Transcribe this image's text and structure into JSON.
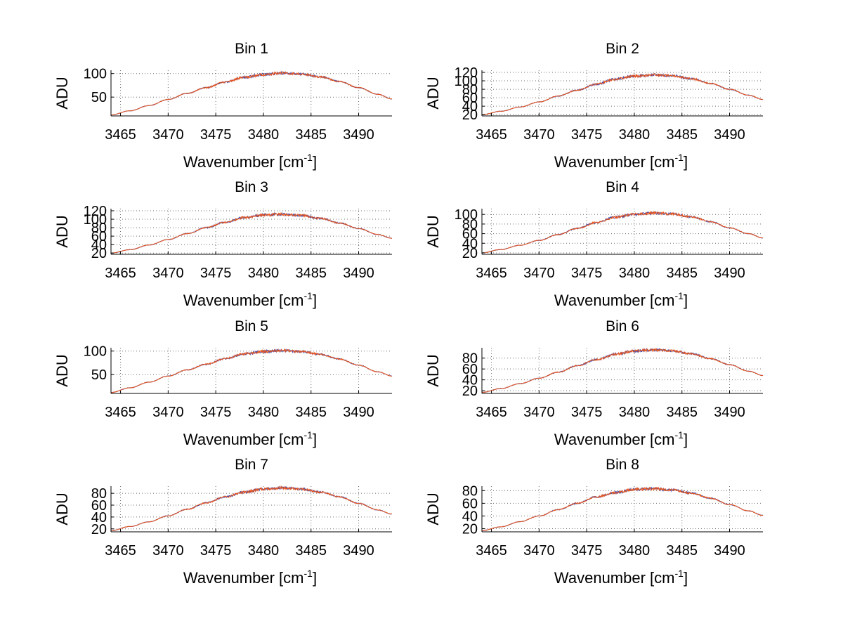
{
  "figure": {
    "x_label_main": "Wavenumber [cm",
    "x_label_sup": "-1",
    "x_label_close": "]",
    "y_label": "ADU",
    "colors": {
      "line_top": "#e8551d",
      "line_under": "#3b46a8",
      "grid": "#6e6e6e",
      "axis": "#000000"
    }
  },
  "chart_data": [
    {
      "type": "line",
      "title": "Bin 1",
      "xlabel": "Wavenumber [cm-1]",
      "ylabel": "ADU",
      "xlim": [
        3464,
        3493.5
      ],
      "ylim": [
        10,
        107
      ],
      "xticks": [
        3465,
        3470,
        3475,
        3480,
        3485,
        3490
      ],
      "yticks": [
        50,
        100
      ],
      "series": [
        {
          "x": [
            3464,
            3466,
            3468,
            3470,
            3472,
            3474,
            3476,
            3478,
            3480,
            3482,
            3484,
            3486,
            3488,
            3490,
            3492,
            3493.5
          ],
          "values": [
            12,
            21,
            32,
            45,
            58,
            70,
            82,
            92,
            98,
            101,
            99,
            93,
            83,
            70,
            56,
            46
          ]
        }
      ],
      "grid": true
    },
    {
      "type": "line",
      "title": "Bin 2",
      "xlabel": "Wavenumber [cm-1]",
      "ylabel": "ADU",
      "xlim": [
        3464,
        3493.5
      ],
      "ylim": [
        17,
        125
      ],
      "xticks": [
        3465,
        3470,
        3475,
        3480,
        3485,
        3490
      ],
      "yticks": [
        20,
        40,
        60,
        80,
        100,
        120
      ],
      "series": [
        {
          "x": [
            3464,
            3466,
            3468,
            3470,
            3472,
            3474,
            3476,
            3478,
            3480,
            3482,
            3484,
            3486,
            3488,
            3490,
            3492,
            3493.5
          ],
          "values": [
            20,
            28,
            38,
            50,
            64,
            78,
            92,
            104,
            111,
            114,
            112,
            105,
            94,
            80,
            66,
            56
          ]
        }
      ],
      "grid": true
    },
    {
      "type": "line",
      "title": "Bin 3",
      "xlabel": "Wavenumber [cm-1]",
      "ylabel": "ADU",
      "xlim": [
        3464,
        3493.5
      ],
      "ylim": [
        17,
        125
      ],
      "xticks": [
        3465,
        3470,
        3475,
        3480,
        3485,
        3490
      ],
      "yticks": [
        20,
        40,
        60,
        80,
        100,
        120
      ],
      "series": [
        {
          "x": [
            3464,
            3466,
            3468,
            3470,
            3472,
            3474,
            3476,
            3478,
            3480,
            3482,
            3484,
            3486,
            3488,
            3490,
            3492,
            3493.5
          ],
          "values": [
            20,
            28,
            39,
            52,
            66,
            80,
            93,
            104,
            110,
            112,
            109,
            102,
            91,
            78,
            64,
            55
          ]
        }
      ],
      "grid": true
    },
    {
      "type": "line",
      "title": "Bin 4",
      "xlabel": "Wavenumber [cm-1]",
      "ylabel": "ADU",
      "xlim": [
        3464,
        3493.5
      ],
      "ylim": [
        17,
        112
      ],
      "xticks": [
        3465,
        3470,
        3475,
        3480,
        3485,
        3490
      ],
      "yticks": [
        20,
        40,
        60,
        80,
        100
      ],
      "series": [
        {
          "x": [
            3464,
            3466,
            3468,
            3470,
            3472,
            3474,
            3476,
            3478,
            3480,
            3482,
            3484,
            3486,
            3488,
            3490,
            3492,
            3493.5
          ],
          "values": [
            20,
            27,
            36,
            46,
            58,
            71,
            83,
            94,
            100,
            103,
            101,
            95,
            85,
            72,
            60,
            51
          ]
        }
      ],
      "grid": true
    },
    {
      "type": "line",
      "title": "Bin 5",
      "xlabel": "Wavenumber [cm-1]",
      "ylabel": "ADU",
      "xlim": [
        3464,
        3493.5
      ],
      "ylim": [
        10,
        107
      ],
      "xticks": [
        3465,
        3470,
        3475,
        3480,
        3485,
        3490
      ],
      "yticks": [
        50,
        100
      ],
      "series": [
        {
          "x": [
            3464,
            3466,
            3468,
            3470,
            3472,
            3474,
            3476,
            3478,
            3480,
            3482,
            3484,
            3486,
            3488,
            3490,
            3492,
            3493.5
          ],
          "values": [
            12,
            22,
            34,
            47,
            60,
            72,
            84,
            94,
            99,
            101,
            99,
            93,
            83,
            70,
            56,
            47
          ]
        }
      ],
      "grid": true
    },
    {
      "type": "line",
      "title": "Bin 6",
      "xlabel": "Wavenumber [cm-1]",
      "ylabel": "ADU",
      "xlim": [
        3464,
        3493.5
      ],
      "ylim": [
        15,
        99
      ],
      "xticks": [
        3465,
        3470,
        3475,
        3480,
        3485,
        3490
      ],
      "yticks": [
        20,
        40,
        60,
        80
      ],
      "series": [
        {
          "x": [
            3464,
            3466,
            3468,
            3470,
            3472,
            3474,
            3476,
            3478,
            3480,
            3482,
            3484,
            3486,
            3488,
            3490,
            3492,
            3493.5
          ],
          "values": [
            17,
            24,
            33,
            43,
            54,
            66,
            77,
            87,
            93,
            95,
            93,
            88,
            79,
            68,
            56,
            48
          ]
        }
      ],
      "grid": true
    },
    {
      "type": "line",
      "title": "Bin 7",
      "xlabel": "Wavenumber [cm-1]",
      "ylabel": "ADU",
      "xlim": [
        3464,
        3493.5
      ],
      "ylim": [
        15,
        92
      ],
      "xticks": [
        3465,
        3470,
        3475,
        3480,
        3485,
        3490
      ],
      "yticks": [
        20,
        40,
        60,
        80
      ],
      "series": [
        {
          "x": [
            3464,
            3466,
            3468,
            3470,
            3472,
            3474,
            3476,
            3478,
            3480,
            3482,
            3484,
            3486,
            3488,
            3490,
            3492,
            3493.5
          ],
          "values": [
            17,
            24,
            32,
            42,
            53,
            64,
            74,
            82,
            87,
            89,
            87,
            82,
            74,
            63,
            52,
            45
          ]
        }
      ],
      "grid": true
    },
    {
      "type": "line",
      "title": "Bin 8",
      "xlabel": "Wavenumber [cm-1]",
      "ylabel": "ADU",
      "xlim": [
        3464,
        3493.5
      ],
      "ylim": [
        15,
        87
      ],
      "xticks": [
        3465,
        3470,
        3475,
        3480,
        3485,
        3490
      ],
      "yticks": [
        20,
        40,
        60,
        80
      ],
      "series": [
        {
          "x": [
            3464,
            3466,
            3468,
            3470,
            3472,
            3474,
            3476,
            3478,
            3480,
            3482,
            3484,
            3486,
            3488,
            3490,
            3492,
            3493.5
          ],
          "values": [
            17,
            23,
            31,
            40,
            50,
            60,
            70,
            77,
            82,
            83,
            81,
            76,
            68,
            58,
            48,
            41
          ]
        }
      ],
      "grid": true
    }
  ]
}
